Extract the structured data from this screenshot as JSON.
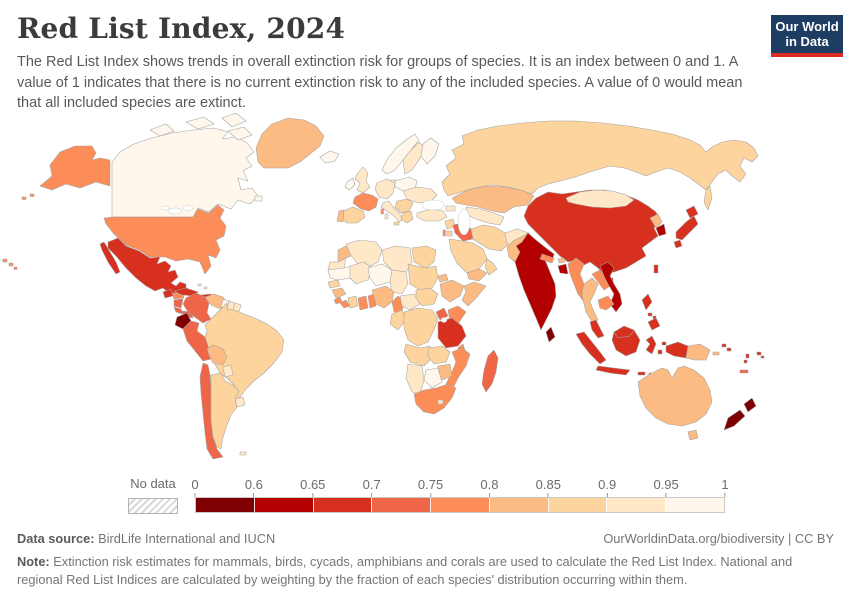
{
  "header": {
    "title": "Red List Index, 2024",
    "subtitle": "The Red List Index shows trends in overall extinction risk for groups of species. It is an index between 0 and 1. A value of 1 indicates that there is no current extinction risk to any of the included species. A value of 0 would mean that all included species are extinct.",
    "logo": {
      "line1": "Our World",
      "line2": "in Data",
      "bg": "#1d3d63",
      "accent": "#dc2c22"
    }
  },
  "legend": {
    "no_data_label": "No data",
    "tick_labels": [
      "0",
      "0.6",
      "0.65",
      "0.7",
      "0.75",
      "0.8",
      "0.85",
      "0.9",
      "0.95",
      "1"
    ],
    "bin_colors": [
      "#7f0000",
      "#b30000",
      "#d7301f",
      "#ef6548",
      "#fc8d59",
      "#fdbb84",
      "#fdd49e",
      "#fee8c8",
      "#fff7ec"
    ]
  },
  "footer": {
    "data_source_label": "Data source:",
    "data_source": " BirdLife International and IUCN",
    "link": "OurWorldinData.org/biodiversity | CC BY",
    "note_label": "Note:",
    "note": " Extinction risk estimates for mammals, birds, cycads, amphibians and corals are used to calculate the Red List Index. National and regional Red List Indices are calculated by weighting by the fraction of each species' distribution occurring within them."
  },
  "map": {
    "type": "choropleth",
    "metric": "Red List Index",
    "year": "2024",
    "regions": {
      "united-states": {
        "name": "United States",
        "bin": "0.75–0.8",
        "color": "#fc8d59"
      },
      "canada": {
        "name": "Canada",
        "bin": "0.95–1",
        "color": "#fff7ec"
      },
      "greenland": {
        "name": "Greenland",
        "bin": "0.8–0.85",
        "color": "#fdbb84"
      },
      "mexico": {
        "name": "Mexico",
        "bin": "0.65–0.7",
        "color": "#d7301f"
      },
      "guatemala": {
        "name": "Guatemala",
        "bin": "0.65–0.7",
        "color": "#d7301f"
      },
      "honduras": {
        "name": "Honduras",
        "bin": "0.75–0.8",
        "color": "#fc8d59"
      },
      "nicaragua": {
        "name": "Nicaragua",
        "bin": "0.7–0.75",
        "color": "#ef6548"
      },
      "costa-rica": {
        "name": "Costa Rica",
        "bin": "0.7–0.75",
        "color": "#ef6548"
      },
      "panama": {
        "name": "Panama",
        "bin": "0.7–0.75",
        "color": "#ef6548"
      },
      "cuba": {
        "name": "Cuba",
        "bin": "0.65–0.7",
        "color": "#d7301f"
      },
      "hispaniola": {
        "name": "Haiti and Dominican Republic",
        "bin": "0.65–0.7",
        "color": "#d7301f"
      },
      "jamaica": {
        "name": "Jamaica",
        "bin": "0.7–0.75",
        "color": "#ef6548"
      },
      "puerto-rico": {
        "name": "Puerto Rico",
        "bin": "0.65–0.7",
        "color": "#d7301f"
      },
      "bahamas": {
        "name": "Bahamas",
        "bin": "0.9–0.95",
        "color": "#fee8c8"
      },
      "lesser-antilles": {
        "name": "Lesser Antilles",
        "bin": "0.65–0.7",
        "color": "#d7301f"
      },
      "colombia": {
        "name": "Colombia",
        "bin": "0.7–0.75",
        "color": "#ef6548"
      },
      "venezuela": {
        "name": "Venezuela",
        "bin": "0.8–0.85",
        "color": "#fdbb84"
      },
      "guyana": {
        "name": "Guyana",
        "bin": "0.95–1",
        "color": "#fff7ec"
      },
      "suriname": {
        "name": "Suriname",
        "bin": "0.9–0.95",
        "color": "#fee8c8"
      },
      "french-guiana": {
        "name": "French Guiana",
        "bin": "0.9–0.95",
        "color": "#fee8c8"
      },
      "ecuador": {
        "name": "Ecuador",
        "bin": "0–0.6",
        "color": "#7f0000"
      },
      "peru": {
        "name": "Peru",
        "bin": "0.7–0.75",
        "color": "#ef6548"
      },
      "brazil": {
        "name": "Brazil",
        "bin": "0.85–0.9",
        "color": "#fdd49e"
      },
      "bolivia": {
        "name": "Bolivia",
        "bin": "0.8–0.85",
        "color": "#fdbb84"
      },
      "paraguay": {
        "name": "Paraguay",
        "bin": "0.9–0.95",
        "color": "#fee8c8"
      },
      "chile": {
        "name": "Chile",
        "bin": "0.7–0.75",
        "color": "#ef6548"
      },
      "argentina": {
        "name": "Argentina",
        "bin": "0.85–0.9",
        "color": "#fdd49e"
      },
      "uruguay": {
        "name": "Uruguay",
        "bin": "0.9–0.95",
        "color": "#fee8c8"
      },
      "falkland-islands": {
        "name": "Falkland Islands",
        "bin": "0.9–0.95",
        "color": "#fee8c8"
      },
      "iceland": {
        "name": "Iceland",
        "bin": "0.95–1",
        "color": "#fff7ec"
      },
      "ireland": {
        "name": "Ireland",
        "bin": "0.95–1",
        "color": "#fff7ec"
      },
      "united-kingdom": {
        "name": "United Kingdom",
        "bin": "0.9–0.95",
        "color": "#fee8c8"
      },
      "norway": {
        "name": "Norway",
        "bin": "0.95–1",
        "color": "#fff7ec"
      },
      "sweden": {
        "name": "Sweden",
        "bin": "0.9–0.95",
        "color": "#fee8c8"
      },
      "finland": {
        "name": "Finland",
        "bin": "0.95–1",
        "color": "#fff7ec"
      },
      "denmark": {
        "name": "Denmark",
        "bin": "0.9–0.95",
        "color": "#fee8c8"
      },
      "france": {
        "name": "France",
        "bin": "0.75–0.8",
        "color": "#fc8d59"
      },
      "spain": {
        "name": "Spain",
        "bin": "0.85–0.9",
        "color": "#fdd49e"
      },
      "portugal": {
        "name": "Portugal",
        "bin": "0.8–0.85",
        "color": "#fdbb84"
      },
      "central-europe": {
        "name": "Germany and Central Europe",
        "bin": "0.9–0.95",
        "color": "#fee8c8"
      },
      "poland-baltics": {
        "name": "Poland and Baltics",
        "bin": "0.95–1",
        "color": "#fff7ec"
      },
      "eastern-europe": {
        "name": "Ukraine and Eastern Europe",
        "bin": "0.9–0.95",
        "color": "#fee8c8"
      },
      "balkans": {
        "name": "Balkans",
        "bin": "0.85–0.9",
        "color": "#fdd49e"
      },
      "greece": {
        "name": "Greece",
        "bin": "0.85–0.9",
        "color": "#fdd49e"
      },
      "italy": {
        "name": "Italy",
        "bin": "0.9–0.95",
        "color": "#fee8c8"
      },
      "sicily": {
        "name": "Sicily (Italy)",
        "bin": "0.85–0.9",
        "color": "#fdd49e"
      },
      "turkey": {
        "name": "Turkey",
        "bin": "0.9–0.95",
        "color": "#fee8c8"
      },
      "caucasus": {
        "name": "Caucasus",
        "bin": "0.9–0.95",
        "color": "#fee8c8"
      },
      "russia": {
        "name": "Russia",
        "bin": "0.85–0.9",
        "color": "#fdd49e"
      },
      "kazakhstan": {
        "name": "Kazakhstan",
        "bin": "0.8–0.85",
        "color": "#fdbb84"
      },
      "central-asia": {
        "name": "Central Asia",
        "bin": "0.9–0.95",
        "color": "#fee8c8"
      },
      "syria": {
        "name": "Syria",
        "bin": "0.85–0.9",
        "color": "#fdd49e"
      },
      "israel": {
        "name": "Israel",
        "bin": "0.75–0.8",
        "color": "#fc8d59"
      },
      "jordan": {
        "name": "Jordan",
        "bin": "0.85–0.9",
        "color": "#fdd49e"
      },
      "iraq": {
        "name": "Iraq",
        "bin": "0.7–0.75",
        "color": "#ef6548"
      },
      "saudi-arabia": {
        "name": "Saudi Arabia",
        "bin": "0.85–0.9",
        "color": "#fdd49e"
      },
      "yemen": {
        "name": "Yemen",
        "bin": "0.8–0.85",
        "color": "#fdbb84"
      },
      "oman": {
        "name": "Oman",
        "bin": "0.85–0.9",
        "color": "#fdd49e"
      },
      "iran": {
        "name": "Iran",
        "bin": "0.85–0.9",
        "color": "#fdd49e"
      },
      "afghanistan": {
        "name": "Afghanistan",
        "bin": "0.9–0.95",
        "color": "#fee8c8"
      },
      "pakistan": {
        "name": "Pakistan",
        "bin": "0.8–0.85",
        "color": "#fdbb84"
      },
      "morocco": {
        "name": "Morocco",
        "bin": "0.8–0.85",
        "color": "#fdbb84"
      },
      "western-sahara": {
        "name": "Western Sahara",
        "bin": "0.9–0.95",
        "color": "#fee8c8"
      },
      "algeria": {
        "name": "Algeria",
        "bin": "0.9–0.95",
        "color": "#fee8c8"
      },
      "libya": {
        "name": "Libya",
        "bin": "0.9–0.95",
        "color": "#fee8c8"
      },
      "egypt": {
        "name": "Egypt",
        "bin": "0.85–0.9",
        "color": "#fdd49e"
      },
      "mauritania": {
        "name": "Mauritania",
        "bin": "0.95–1",
        "color": "#fff7ec"
      },
      "mali": {
        "name": "Mali",
        "bin": "0.9–0.95",
        "color": "#fee8c8"
      },
      "niger": {
        "name": "Niger",
        "bin": "0.95–1",
        "color": "#fff7ec"
      },
      "chad": {
        "name": "Chad",
        "bin": "0.9–0.95",
        "color": "#fee8c8"
      },
      "sudan": {
        "name": "Sudan",
        "bin": "0.85–0.9",
        "color": "#fdd49e"
      },
      "eritrea": {
        "name": "Eritrea",
        "bin": "0.8–0.85",
        "color": "#fdbb84"
      },
      "senegal": {
        "name": "Senegal",
        "bin": "0.85–0.9",
        "color": "#fdd49e"
      },
      "guinea": {
        "name": "Guinea",
        "bin": "0.8–0.85",
        "color": "#fdbb84"
      },
      "sierra-leone": {
        "name": "Sierra Leone",
        "bin": "0.75–0.8",
        "color": "#fc8d59"
      },
      "liberia": {
        "name": "Liberia",
        "bin": "0.75–0.8",
        "color": "#fc8d59"
      },
      "ivory-coast": {
        "name": "Cote d'Ivoire",
        "bin": "0.85–0.9",
        "color": "#fdd49e"
      },
      "ghana": {
        "name": "Ghana",
        "bin": "0.75–0.8",
        "color": "#fc8d59"
      },
      "togo-benin": {
        "name": "Togo and Benin",
        "bin": "0.75–0.8",
        "color": "#fc8d59"
      },
      "nigeria": {
        "name": "Nigeria",
        "bin": "0.8–0.85",
        "color": "#fdbb84"
      },
      "cameroon": {
        "name": "Cameroon",
        "bin": "0.75–0.8",
        "color": "#fc8d59"
      },
      "central-african-republic": {
        "name": "Central African Republic",
        "bin": "0.9–0.95",
        "color": "#fee8c8"
      },
      "south-sudan": {
        "name": "South Sudan",
        "bin": "0.85–0.9",
        "color": "#fdd49e"
      },
      "ethiopia": {
        "name": "Ethiopia",
        "bin": "0.8–0.85",
        "color": "#fdbb84"
      },
      "somalia": {
        "name": "Somalia",
        "bin": "0.8–0.85",
        "color": "#fdbb84"
      },
      "kenya": {
        "name": "Kenya",
        "bin": "0.75–0.8",
        "color": "#fc8d59"
      },
      "uganda": {
        "name": "Uganda",
        "bin": "0.7–0.75",
        "color": "#ef6548"
      },
      "tanzania": {
        "name": "Tanzania",
        "bin": "0.65–0.7",
        "color": "#d7301f"
      },
      "dr-congo": {
        "name": "Democratic Republic of Congo",
        "bin": "0.85–0.9",
        "color": "#fdd49e"
      },
      "congo-gabon": {
        "name": "Congo and Gabon",
        "bin": "0.85–0.9",
        "color": "#fdd49e"
      },
      "angola": {
        "name": "Angola",
        "bin": "0.85–0.9",
        "color": "#fdd49e"
      },
      "zambia": {
        "name": "Zambia",
        "bin": "0.85–0.9",
        "color": "#fdd49e"
      },
      "malawi": {
        "name": "Malawi",
        "bin": "0.75–0.8",
        "color": "#fc8d59"
      },
      "mozambique": {
        "name": "Mozambique",
        "bin": "0.75–0.8",
        "color": "#fc8d59"
      },
      "zimbabwe": {
        "name": "Zimbabwe",
        "bin": "0.8–0.85",
        "color": "#fdbb84"
      },
      "botswana": {
        "name": "Botswana",
        "bin": "0.95–1",
        "color": "#fff7ec"
      },
      "namibia": {
        "name": "Namibia",
        "bin": "0.9–0.95",
        "color": "#fee8c8"
      },
      "south-africa": {
        "name": "South Africa",
        "bin": "0.75–0.8",
        "color": "#fc8d59"
      },
      "lesotho": {
        "name": "Lesotho",
        "bin": "0.9–0.95",
        "color": "#fee8c8"
      },
      "madagascar": {
        "name": "Madagascar",
        "bin": "0.7–0.75",
        "color": "#ef6548"
      },
      "india": {
        "name": "India",
        "bin": "0.6–0.65",
        "color": "#b30000"
      },
      "nepal": {
        "name": "Nepal",
        "bin": "0.75–0.8",
        "color": "#fc8d59"
      },
      "bhutan": {
        "name": "Bhutan",
        "bin": "0.8–0.85",
        "color": "#fdbb84"
      },
      "bangladesh": {
        "name": "Bangladesh",
        "bin": "0.6–0.65",
        "color": "#b30000"
      },
      "sri-lanka": {
        "name": "Sri Lanka",
        "bin": "0–0.6",
        "color": "#7f0000"
      },
      "china": {
        "name": "China",
        "bin": "0.65–0.7",
        "color": "#d7301f"
      },
      "mongolia": {
        "name": "Mongolia",
        "bin": "0.9–0.95",
        "color": "#fee8c8"
      },
      "north-korea": {
        "name": "North Korea",
        "bin": "0.8–0.85",
        "color": "#fdbb84"
      },
      "south-korea": {
        "name": "South Korea",
        "bin": "0.6–0.65",
        "color": "#b30000"
      },
      "japan": {
        "name": "Japan",
        "bin": "0.65–0.7",
        "color": "#d7301f"
      },
      "taiwan": {
        "name": "Taiwan",
        "bin": "0.65–0.7",
        "color": "#d7301f"
      },
      "myanmar": {
        "name": "Myanmar",
        "bin": "0.75–0.8",
        "color": "#fc8d59"
      },
      "thailand": {
        "name": "Thailand",
        "bin": "0.8–0.85",
        "color": "#fdbb84"
      },
      "laos": {
        "name": "Laos",
        "bin": "0.75–0.8",
        "color": "#fc8d59"
      },
      "vietnam": {
        "name": "Vietnam",
        "bin": "0.6–0.65",
        "color": "#b30000"
      },
      "cambodia": {
        "name": "Cambodia",
        "bin": "0.75–0.8",
        "color": "#fc8d59"
      },
      "malaysia": {
        "name": "Malaysia",
        "bin": "0.65–0.7",
        "color": "#d7301f"
      },
      "indonesia": {
        "name": "Indonesia",
        "bin": "0.65–0.7",
        "color": "#d7301f"
      },
      "philippines": {
        "name": "Philippines",
        "bin": "0.65–0.7",
        "color": "#d7301f"
      },
      "papua-new-guinea": {
        "name": "Papua New Guinea",
        "bin": "0.8–0.85",
        "color": "#fdbb84"
      },
      "solomon-islands": {
        "name": "Solomon Islands",
        "bin": "0.65–0.7",
        "color": "#d7301f"
      },
      "vanuatu": {
        "name": "Vanuatu",
        "bin": "0.65–0.7",
        "color": "#d7301f"
      },
      "fiji": {
        "name": "Fiji",
        "bin": "0.65–0.7",
        "color": "#d7301f"
      },
      "new-caledonia": {
        "name": "New Caledonia",
        "bin": "0.7–0.75",
        "color": "#ef6548"
      },
      "australia": {
        "name": "Australia",
        "bin": "0.8–0.85",
        "color": "#fdbb84"
      },
      "new-zealand": {
        "name": "New Zealand",
        "bin": "0–0.6",
        "color": "#7f0000"
      }
    }
  }
}
